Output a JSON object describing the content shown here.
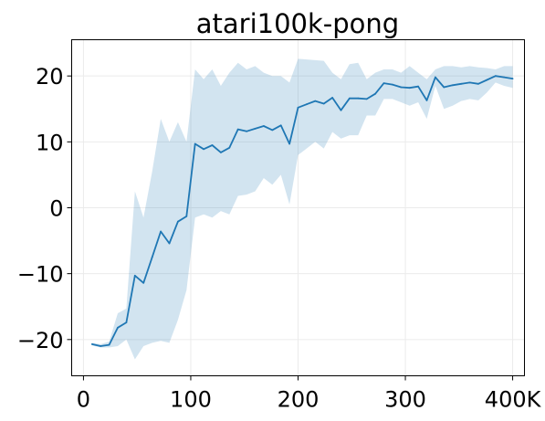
{
  "chart_data": {
    "type": "line",
    "title": "atari100k-pong",
    "xlabel": "",
    "ylabel": "",
    "xlim": [
      -11000,
      411000
    ],
    "ylim": [
      -25.5,
      25.5
    ],
    "grid": true,
    "x_ticks": [
      {
        "value": 0,
        "label": "0"
      },
      {
        "value": 100000,
        "label": "100"
      },
      {
        "value": 200000,
        "label": "200"
      },
      {
        "value": 300000,
        "label": "300"
      },
      {
        "value": 400000,
        "label": "400K"
      }
    ],
    "y_ticks": [
      {
        "value": -20,
        "label": "−20"
      },
      {
        "value": -10,
        "label": "−10"
      },
      {
        "value": 0,
        "label": "0"
      },
      {
        "value": 10,
        "label": "10"
      },
      {
        "value": 20,
        "label": "20"
      }
    ],
    "colors": {
      "line": "#1f77b4",
      "band": "#1f77b4",
      "band_opacity": 0.2,
      "grid": "#ebebeb"
    },
    "series": [
      {
        "x": [
          8000,
          16000,
          24000,
          32000,
          40000,
          48000,
          56000,
          64000,
          72000,
          80000,
          88000,
          96000,
          104000,
          112000,
          120000,
          128000,
          136000,
          144000,
          152000,
          160000,
          168000,
          176000,
          184000,
          192000,
          200000,
          208000,
          216000,
          224000,
          232000,
          240000,
          248000,
          256000,
          264000,
          272000,
          280000,
          288000,
          296000,
          304000,
          312000,
          320000,
          328000,
          336000,
          344000,
          352000,
          360000,
          368000,
          376000,
          384000,
          392000,
          400000
        ],
        "y": [
          -20.7,
          -21.0,
          -20.8,
          -18.2,
          -17.4,
          -10.3,
          -11.4,
          -7.5,
          -3.6,
          -5.4,
          -2.1,
          -1.3,
          9.7,
          8.9,
          9.5,
          8.4,
          9.1,
          11.9,
          11.6,
          12.0,
          12.4,
          11.8,
          12.5,
          9.7,
          15.2,
          15.7,
          16.2,
          15.8,
          16.7,
          14.8,
          16.6,
          16.6,
          16.5,
          17.3,
          18.9,
          18.7,
          18.3,
          18.2,
          18.4,
          16.3,
          19.8,
          18.3,
          18.6,
          18.8,
          19.0,
          18.8,
          19.4,
          20.0,
          19.8,
          19.6
        ],
        "upper": [
          -20.5,
          -20.7,
          -20.3,
          -16.0,
          -15.3,
          2.5,
          -1.5,
          5.5,
          13.5,
          10.0,
          13.0,
          10.0,
          21.0,
          19.5,
          21.0,
          18.5,
          20.5,
          22.0,
          21.0,
          21.5,
          20.5,
          20.0,
          20.0,
          19.0,
          22.6,
          22.5,
          22.4,
          22.3,
          20.5,
          19.5,
          21.8,
          22.0,
          19.5,
          20.5,
          21.0,
          21.0,
          20.5,
          21.5,
          20.5,
          19.5,
          21.0,
          21.5,
          21.5,
          21.3,
          21.5,
          21.3,
          21.2,
          21.0,
          21.5,
          21.5
        ],
        "lower": [
          -20.9,
          -21.2,
          -21.2,
          -21.0,
          -20.0,
          -23.0,
          -21.0,
          -20.5,
          -20.2,
          -20.5,
          -17.0,
          -12.5,
          -1.5,
          -1.0,
          -1.5,
          -0.5,
          -1.0,
          1.8,
          2.0,
          2.5,
          4.5,
          3.5,
          5.0,
          0.5,
          8.0,
          9.0,
          10.0,
          9.0,
          11.5,
          10.5,
          11.0,
          11.0,
          14.0,
          14.0,
          16.5,
          16.5,
          16.0,
          15.5,
          16.0,
          13.5,
          18.5,
          15.0,
          15.5,
          16.2,
          16.5,
          16.3,
          17.5,
          19.0,
          18.5,
          18.2
        ]
      }
    ]
  }
}
